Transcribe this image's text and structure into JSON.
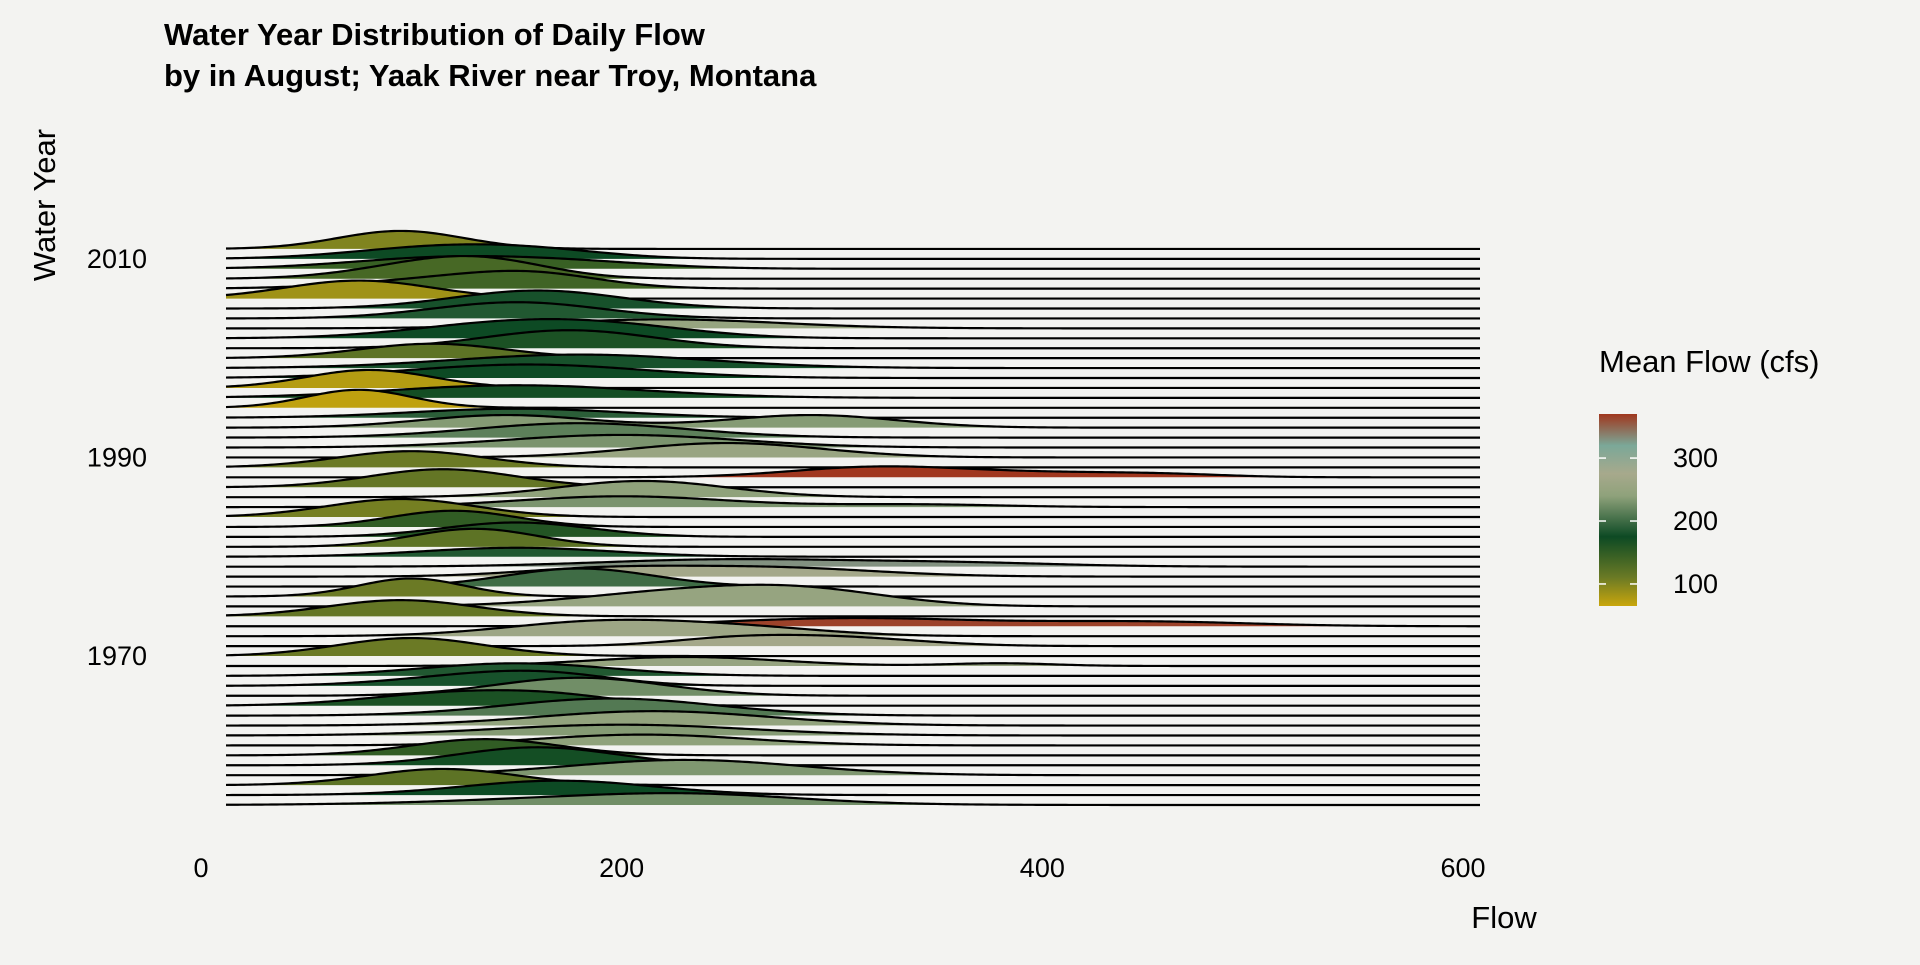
{
  "chart_data": {
    "type": "ridgeline",
    "title_line1": "Water Year Distribution of Daily Flow",
    "title_line2": "by in August; Yaak River near Troy, Montana",
    "xlabel": "Flow",
    "ylabel": "Water Year",
    "xlim": [
      0,
      600
    ],
    "x_ticks": [
      "0",
      "200",
      "400",
      "600"
    ],
    "x_tick_values": [
      0,
      200,
      400,
      600
    ],
    "y_ticks": [
      "1970",
      "1990",
      "2010"
    ],
    "y_tick_values": [
      1970,
      1990,
      2010
    ],
    "legend": {
      "title": "Mean Flow (cfs)",
      "labels": [
        "100",
        "200",
        "300"
      ],
      "values": [
        100,
        200,
        300
      ],
      "range": [
        65,
        370
      ],
      "colors": [
        "#c9a60c",
        "#6b7a25",
        "#0d4a24",
        "#8fa27b",
        "#a7a98c",
        "#7ba898",
        "#a0371e"
      ],
      "color_stops": [
        65,
        110,
        175,
        240,
        275,
        320,
        370
      ],
      "position": "right"
    },
    "grid": false,
    "series": [
      {
        "year": 1955,
        "peaks": [
          [
            200,
            70,
            0.45
          ],
          [
            240,
            45,
            0.25
          ]
        ],
        "mean": 225
      },
      {
        "year": 1956,
        "peaks": [
          [
            170,
            45,
            0.8
          ]
        ],
        "mean": 175
      },
      {
        "year": 1957,
        "peaks": [
          [
            115,
            35,
            0.9
          ]
        ],
        "mean": 120
      },
      {
        "year": 1958,
        "peaks": [
          [
            230,
            55,
            0.85
          ]
        ],
        "mean": 232
      },
      {
        "year": 1959,
        "peaks": [
          [
            160,
            38,
            1.0
          ]
        ],
        "mean": 170
      },
      {
        "year": 1960,
        "peaks": [
          [
            135,
            35,
            0.9
          ]
        ],
        "mean": 150
      },
      {
        "year": 1961,
        "peaks": [
          [
            210,
            50,
            0.6
          ]
        ],
        "mean": 240
      },
      {
        "year": 1962,
        "peaks": [
          [
            200,
            60,
            0.6
          ]
        ],
        "mean": 235
      },
      {
        "year": 1963,
        "peaks": [
          [
            215,
            55,
            0.8
          ]
        ],
        "mean": 245
      },
      {
        "year": 1964,
        "peaks": [
          [
            195,
            50,
            0.95
          ]
        ],
        "mean": 210
      },
      {
        "year": 1965,
        "peaks": [
          [
            120,
            40,
            0.7
          ],
          [
            170,
            30,
            0.4
          ]
        ],
        "mean": 165
      },
      {
        "year": 1966,
        "peaks": [
          [
            180,
            40,
            1.0
          ]
        ],
        "mean": 225
      },
      {
        "year": 1967,
        "peaks": [
          [
            135,
            40,
            0.6
          ],
          [
            170,
            30,
            0.35
          ]
        ],
        "mean": 180
      },
      {
        "year": 1968,
        "peaks": [
          [
            150,
            45,
            0.7
          ]
        ],
        "mean": 185
      },
      {
        "year": 1969,
        "peaks": [
          [
            230,
            45,
            0.5
          ],
          [
            380,
            25,
            0.15
          ]
        ],
        "mean": 250
      },
      {
        "year": 1970,
        "peaks": [
          [
            100,
            35,
            1.0
          ]
        ],
        "mean": 110
      },
      {
        "year": 1971,
        "peaks": [
          [
            300,
            40,
            0.5
          ],
          [
            250,
            30,
            0.3
          ]
        ],
        "mean": 270
      },
      {
        "year": 1972,
        "peaks": [
          [
            190,
            45,
            0.8
          ],
          [
            260,
            40,
            0.4
          ]
        ],
        "mean": 260
      },
      {
        "year": 1973,
        "peaks": [
          [
            310,
            60,
            0.45
          ],
          [
            450,
            50,
            0.25
          ]
        ],
        "mean": 365
      },
      {
        "year": 1974,
        "peaks": [
          [
            95,
            35,
            0.9
          ]
        ],
        "mean": 115
      },
      {
        "year": 1975,
        "peaks": [
          [
            230,
            50,
            0.8
          ],
          [
            290,
            40,
            0.7
          ]
        ],
        "mean": 250
      },
      {
        "year": 1976,
        "peaks": [
          [
            100,
            25,
            1.0
          ]
        ],
        "mean": 110
      },
      {
        "year": 1977,
        "peaks": [
          [
            180,
            35,
            1.0
          ]
        ],
        "mean": 200
      },
      {
        "year": 1978,
        "peaks": [
          [
            270,
            50,
            0.5
          ],
          [
            190,
            40,
            0.4
          ]
        ],
        "mean": 270
      },
      {
        "year": 1979,
        "peaks": [
          [
            250,
            60,
            0.4
          ],
          [
            360,
            50,
            0.2
          ]
        ],
        "mean": 330
      },
      {
        "year": 1980,
        "peaks": [
          [
            150,
            45,
            0.5
          ]
        ],
        "mean": 185
      },
      {
        "year": 1981,
        "peaks": [
          [
            130,
            30,
            1.0
          ]
        ],
        "mean": 120
      },
      {
        "year": 1982,
        "peaks": [
          [
            150,
            35,
            0.8
          ]
        ],
        "mean": 160
      },
      {
        "year": 1983,
        "peaks": [
          [
            120,
            30,
            0.9
          ]
        ],
        "mean": 150
      },
      {
        "year": 1984,
        "peaks": [
          [
            95,
            35,
            1.0
          ]
        ],
        "mean": 105
      },
      {
        "year": 1985,
        "peaks": [
          [
            200,
            50,
            0.6
          ],
          [
            340,
            40,
            0.15
          ]
        ],
        "mean": 230
      },
      {
        "year": 1986,
        "peaks": [
          [
            210,
            40,
            0.9
          ]
        ],
        "mean": 240
      },
      {
        "year": 1987,
        "peaks": [
          [
            115,
            35,
            1.0
          ]
        ],
        "mean": 115
      },
      {
        "year": 1988,
        "peaks": [
          [
            320,
            40,
            0.55
          ],
          [
            400,
            45,
            0.25
          ],
          [
            460,
            30,
            0.12
          ]
        ],
        "mean": 370
      },
      {
        "year": 1989,
        "peaks": [
          [
            100,
            35,
            0.9
          ]
        ],
        "mean": 110
      },
      {
        "year": 1990,
        "peaks": [
          [
            250,
            45,
            0.8
          ]
        ],
        "mean": 255
      },
      {
        "year": 1991,
        "peaks": [
          [
            200,
            55,
            0.7
          ]
        ],
        "mean": 230
      },
      {
        "year": 1992,
        "peaks": [
          [
            180,
            50,
            0.8
          ]
        ],
        "mean": 215
      },
      {
        "year": 1993,
        "peaks": [
          [
            145,
            40,
            0.7
          ],
          [
            290,
            40,
            0.7
          ]
        ],
        "mean": 235
      },
      {
        "year": 1994,
        "peaks": [
          [
            150,
            50,
            0.5
          ]
        ],
        "mean": 190
      },
      {
        "year": 1995,
        "peaks": [
          [
            75,
            25,
            1.0
          ]
        ],
        "mean": 70
      },
      {
        "year": 1996,
        "peaks": [
          [
            150,
            60,
            0.7
          ]
        ],
        "mean": 170
      },
      {
        "year": 1997,
        "peaks": [
          [
            80,
            30,
            1.0
          ]
        ],
        "mean": 75
      },
      {
        "year": 1998,
        "peaks": [
          [
            155,
            55,
            0.75
          ]
        ],
        "mean": 175
      },
      {
        "year": 1999,
        "peaks": [
          [
            180,
            60,
            0.75
          ]
        ],
        "mean": 180
      },
      {
        "year": 2000,
        "peaks": [
          [
            110,
            35,
            0.8
          ]
        ],
        "mean": 120
      },
      {
        "year": 2001,
        "peaks": [
          [
            175,
            40,
            1.0
          ]
        ],
        "mean": 165
      },
      {
        "year": 2002,
        "peaks": [
          [
            145,
            45,
            0.8
          ],
          [
            200,
            40,
            0.5
          ]
        ],
        "mean": 175
      },
      {
        "year": 2003,
        "peaks": [
          [
            220,
            55,
            0.5
          ]
        ],
        "mean": 250
      },
      {
        "year": 2004,
        "peaks": [
          [
            150,
            40,
            0.9
          ]
        ],
        "mean": 185
      },
      {
        "year": 2005,
        "peaks": [
          [
            160,
            40,
            1.0
          ]
        ],
        "mean": 180
      },
      {
        "year": 2006,
        "peaks": [
          [
            75,
            35,
            1.0
          ]
        ],
        "mean": 85
      },
      {
        "year": 2007,
        "peaks": [
          [
            125,
            45,
            0.6
          ],
          [
            160,
            30,
            0.5
          ]
        ],
        "mean": 140
      },
      {
        "year": 2008,
        "peaks": [
          [
            110,
            35,
            0.8
          ],
          [
            140,
            30,
            0.6
          ]
        ],
        "mean": 135
      },
      {
        "year": 2009,
        "peaks": [
          [
            115,
            45,
            0.6
          ],
          [
            180,
            40,
            0.3
          ]
        ],
        "mean": 145
      },
      {
        "year": 2010,
        "peaks": [
          [
            110,
            40,
            0.6
          ],
          [
            160,
            35,
            0.4
          ]
        ],
        "mean": 175
      },
      {
        "year": 2011,
        "peaks": [
          [
            95,
            30,
            1.0
          ]
        ],
        "mean": 100
      }
    ]
  }
}
